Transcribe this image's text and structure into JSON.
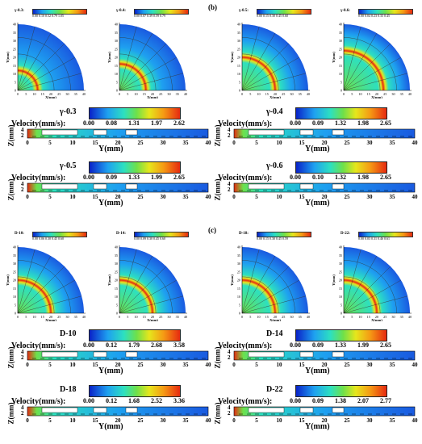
{
  "section_b_label": "(b)",
  "section_c_label": "(c)",
  "colors": {
    "low": "#0a22c8",
    "mid": "#6ee04a",
    "high": "#e62a10"
  },
  "quarters_b": [
    {
      "title": "γ-0.3:",
      "scale": [
        "0.00",
        "0.10",
        "0.52",
        "0.79",
        "1.05"
      ],
      "ring": 0.3
    },
    {
      "title": "γ-0.4:",
      "scale": [
        "0.00",
        "0.07",
        "0.39",
        "0.59",
        "0.79"
      ],
      "ring": 0.4
    },
    {
      "title": "γ-0.5:",
      "scale": [
        "0.00",
        "0.15",
        "0.30",
        "0.45",
        "0.60"
      ],
      "ring": 0.5
    },
    {
      "title": "γ-0.6:",
      "scale": [
        "0.00",
        "0.04",
        "0.23",
        "0.33",
        "0.45"
      ],
      "ring": 0.6
    }
  ],
  "quarters_c": [
    {
      "title": "D-10:",
      "scale": [
        "0.00",
        "0.06",
        "0.30",
        "0.45",
        "0.60"
      ],
      "ring": 0.5
    },
    {
      "title": "D-14:",
      "scale": [
        "0.00",
        "0.09",
        "0.30",
        "0.45",
        "0.60"
      ],
      "ring": 0.5
    },
    {
      "title": "D-18:",
      "scale": [
        "0.00",
        "0.15",
        "0.30",
        "0.45",
        "0.59"
      ],
      "ring": 0.5
    },
    {
      "title": "D-22:",
      "scale": [
        "0.00",
        "0.03",
        "0.31",
        "0.46",
        "0.61"
      ],
      "ring": 0.5
    }
  ],
  "quarter_axis": {
    "xlabel": "X(mm)",
    "ylabel": "Y(mm)",
    "ticks": [
      "0",
      "5",
      "10",
      "15",
      "20",
      "25",
      "30",
      "35",
      "40"
    ]
  },
  "slabs_b": [
    {
      "case": "γ-0.3",
      "velocity_label": "Velocity(mm/s):",
      "ticks": [
        "0.00",
        "0.08",
        "1.31",
        "1.97",
        "2.62"
      ]
    },
    {
      "case": "γ-0.4",
      "velocity_label": "Velocity(mm/s):",
      "ticks": [
        "0.00",
        "0.09",
        "1.32",
        "1.98",
        "2.65"
      ]
    },
    {
      "case": "γ-0.5",
      "velocity_label": "Velocity(mm/s):",
      "ticks": [
        "0.00",
        "0.09",
        "1.33",
        "1.99",
        "2.65"
      ]
    },
    {
      "case": "γ-0.6",
      "velocity_label": "Velocity(mm/s):",
      "ticks": [
        "0.00",
        "0.10",
        "1.32",
        "1.98",
        "2.65"
      ]
    }
  ],
  "slabs_c": [
    {
      "case": "D-10",
      "velocity_label": "Velocity(mm/s):",
      "ticks": [
        "0.00",
        "0.12",
        "1.79",
        "2.68",
        "3.58"
      ]
    },
    {
      "case": "D-14",
      "velocity_label": "Velocity(mm/s):",
      "ticks": [
        "0.00",
        "0.09",
        "1.33",
        "1.99",
        "2.65"
      ]
    },
    {
      "case": "D-18",
      "velocity_label": "Velocity(mm/s):",
      "ticks": [
        "0.00",
        "0.12",
        "1.68",
        "2.52",
        "3.36"
      ]
    },
    {
      "case": "D-22",
      "velocity_label": "Velocity(mm/s):",
      "ticks": [
        "0.00",
        "0.09",
        "1.38",
        "2.07",
        "2.77"
      ]
    }
  ],
  "slab_axis": {
    "zlabel": "Z(mm)",
    "z_ticks": [
      "4",
      "2"
    ],
    "ylabel": "Y(mm)",
    "ticks": [
      "0",
      "5",
      "10",
      "15",
      "20",
      "25",
      "30",
      "35",
      "40"
    ]
  }
}
